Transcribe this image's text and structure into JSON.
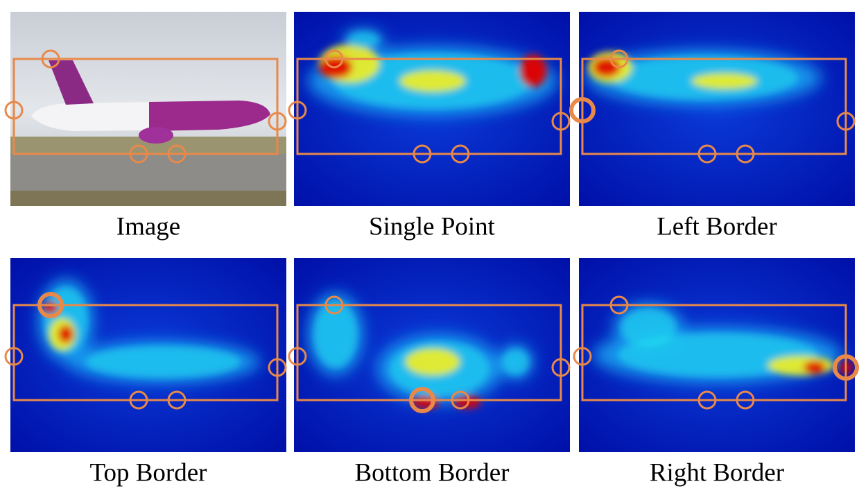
{
  "panels": [
    {
      "caption": "Image"
    },
    {
      "caption": "Single Point"
    },
    {
      "caption": "Left Border"
    },
    {
      "caption": "Top Border"
    },
    {
      "caption": "Bottom Border"
    },
    {
      "caption": "Right Border"
    }
  ]
}
